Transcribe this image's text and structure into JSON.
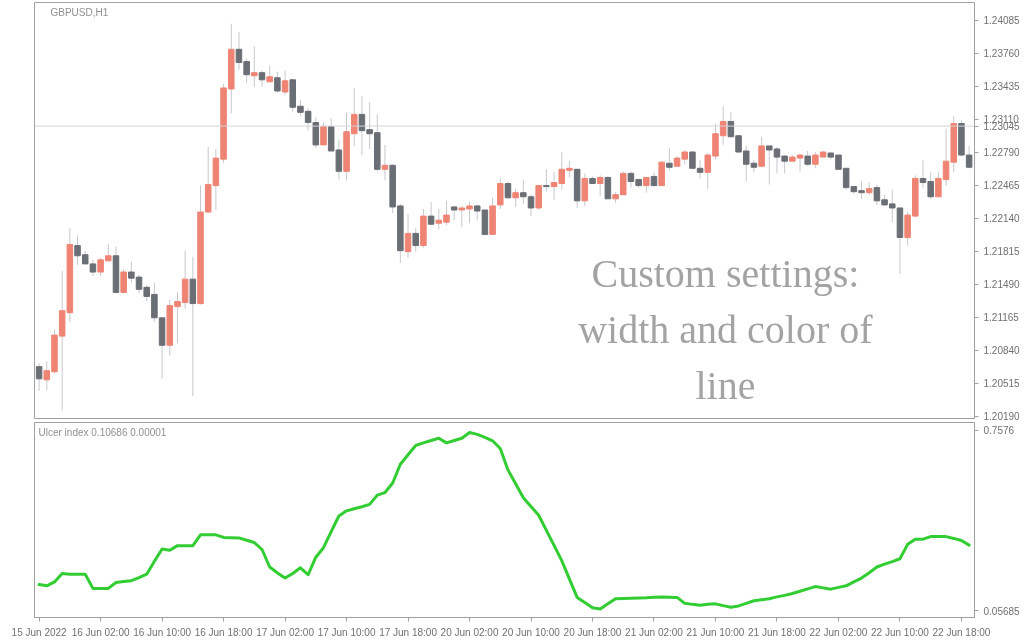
{
  "chart_data": [
    {
      "type": "candlestick",
      "title": "GBPUSD,H1",
      "annotations": [
        "Custom settings: width and color of line"
      ],
      "categories": [
        null,
        null,
        null,
        null,
        null,
        null,
        null,
        null,
        null,
        null,
        null,
        null,
        null,
        null,
        null,
        null,
        null,
        null,
        null,
        null,
        null,
        null,
        null,
        null,
        null,
        null,
        null,
        null,
        null,
        null,
        null,
        null,
        null,
        null,
        null,
        null,
        null,
        null,
        null,
        null,
        null,
        null,
        null,
        null,
        null,
        null,
        null,
        null,
        null,
        null,
        null,
        null,
        null,
        null,
        null,
        null,
        null,
        null,
        null,
        null,
        null,
        null,
        null,
        null,
        null,
        null,
        null,
        null,
        null,
        null,
        null,
        null,
        null,
        null,
        null,
        null,
        null,
        null,
        null,
        null,
        null,
        null,
        null,
        null,
        null,
        null,
        null,
        null,
        null,
        null,
        null,
        null,
        null,
        null,
        null,
        null,
        null,
        null,
        null,
        null,
        null,
        null,
        null,
        null,
        null,
        null,
        null,
        null,
        null,
        null,
        null,
        null,
        null,
        null,
        null,
        null,
        null,
        null,
        null,
        null,
        null,
        null
      ],
      "ohlc": [
        [
          1.2068,
          1.2071,
          1.2044,
          1.2056
        ],
        [
          1.2055,
          1.2073,
          1.2045,
          1.2064
        ],
        [
          1.2063,
          1.2104,
          1.2061,
          1.2099
        ],
        [
          1.2098,
          1.2162,
          1.2025,
          1.2123
        ],
        [
          1.2121,
          1.2204,
          1.2112,
          1.2188
        ],
        [
          1.2187,
          1.2197,
          1.2168,
          1.2177
        ],
        [
          1.2178,
          1.2182,
          1.2169,
          1.2169
        ],
        [
          1.2169,
          1.2173,
          1.2157,
          1.2161
        ],
        [
          1.2161,
          1.2175,
          1.2157,
          1.2173
        ],
        [
          1.2172,
          1.2189,
          1.2172,
          1.2177
        ],
        [
          1.2177,
          1.2186,
          1.214,
          1.2141
        ],
        [
          1.2141,
          1.2164,
          1.214,
          1.2161
        ],
        [
          1.2161,
          1.2171,
          1.2151,
          1.2155
        ],
        [
          1.2156,
          1.2158,
          1.214,
          1.2144
        ],
        [
          1.2146,
          1.2148,
          1.2132,
          1.2137
        ],
        [
          1.2139,
          1.215,
          1.2112,
          1.2116
        ],
        [
          1.2116,
          1.2116,
          1.2056,
          1.2089
        ],
        [
          1.2089,
          1.2134,
          1.2079,
          1.2128
        ],
        [
          1.2127,
          1.2141,
          1.2091,
          1.2132
        ],
        [
          1.2131,
          1.2182,
          1.2125,
          1.2154
        ],
        [
          1.2154,
          1.2176,
          1.2039,
          1.213
        ],
        [
          1.213,
          1.2246,
          1.2129,
          1.222
        ],
        [
          1.222,
          1.2284,
          1.2219,
          1.2247
        ],
        [
          1.2246,
          1.2282,
          1.2222,
          1.2273
        ],
        [
          1.2272,
          1.2346,
          1.2268,
          1.2342
        ],
        [
          1.2341,
          1.2405,
          1.2317,
          1.238
        ],
        [
          1.238,
          1.2397,
          1.236,
          1.2367
        ],
        [
          1.2368,
          1.2371,
          1.2347,
          1.2355
        ],
        [
          1.2354,
          1.2383,
          1.2343,
          1.2357
        ],
        [
          1.2357,
          1.2359,
          1.2343,
          1.235
        ],
        [
          1.2348,
          1.2364,
          1.2348,
          1.2353
        ],
        [
          1.2352,
          1.2358,
          1.2337,
          1.2339
        ],
        [
          1.2338,
          1.2359,
          1.2335,
          1.2349
        ],
        [
          1.235,
          1.2351,
          1.2318,
          1.2323
        ],
        [
          1.2324,
          1.233,
          1.2314,
          1.2318
        ],
        [
          1.2319,
          1.2322,
          1.23,
          1.2308
        ],
        [
          1.2308,
          1.2313,
          1.2283,
          1.2286
        ],
        [
          1.2286,
          1.2308,
          1.2286,
          1.2304
        ],
        [
          1.2304,
          1.2312,
          1.228,
          1.228
        ],
        [
          1.2281,
          1.2291,
          1.2252,
          1.226
        ],
        [
          1.226,
          1.2318,
          1.2251,
          1.2299
        ],
        [
          1.2297,
          1.2342,
          1.2285,
          1.2316
        ],
        [
          1.2316,
          1.2334,
          1.2276,
          1.23
        ],
        [
          1.2301,
          1.2328,
          1.2282,
          1.2297
        ],
        [
          1.2298,
          1.2316,
          1.226,
          1.2262
        ],
        [
          1.2262,
          1.2286,
          1.2251,
          1.2266
        ],
        [
          1.2266,
          1.2267,
          1.2219,
          1.2225
        ],
        [
          1.2226,
          1.2228,
          1.217,
          1.2182
        ],
        [
          1.2181,
          1.2218,
          1.2175,
          1.2199
        ],
        [
          1.2199,
          1.2204,
          1.2181,
          1.2187
        ],
        [
          1.2187,
          1.2223,
          1.2185,
          1.2216
        ],
        [
          1.2216,
          1.223,
          1.2207,
          1.2208
        ],
        [
          1.2209,
          1.2223,
          1.2203,
          1.2212
        ],
        [
          1.221,
          1.2231,
          1.2207,
          1.2217
        ],
        [
          1.2225,
          1.2226,
          1.2212,
          1.2222
        ],
        [
          1.2222,
          1.2226,
          1.2205,
          1.2224
        ],
        [
          1.2223,
          1.223,
          1.2209,
          1.2226
        ],
        [
          1.2226,
          1.2227,
          1.2212,
          1.2221
        ],
        [
          1.2222,
          1.2222,
          1.2197,
          1.2198
        ],
        [
          1.2198,
          1.2234,
          1.2198,
          1.2226
        ],
        [
          1.2227,
          1.2253,
          1.2223,
          1.2248
        ],
        [
          1.2248,
          1.225,
          1.2233,
          1.2234
        ],
        [
          1.2234,
          1.2243,
          1.2225,
          1.2239
        ],
        [
          1.2239,
          1.2252,
          1.2228,
          1.2235
        ],
        [
          1.2235,
          1.2237,
          1.2216,
          1.2224
        ],
        [
          1.2224,
          1.2247,
          1.2222,
          1.2246
        ],
        [
          1.2246,
          1.2262,
          1.224,
          1.2245
        ],
        [
          1.2245,
          1.2259,
          1.2232,
          1.2249
        ],
        [
          1.2248,
          1.2279,
          1.2242,
          1.2262
        ],
        [
          1.2261,
          1.227,
          1.2254,
          1.2263
        ],
        [
          1.2262,
          1.2262,
          1.2224,
          1.2231
        ],
        [
          1.2231,
          1.2258,
          1.2226,
          1.2253
        ],
        [
          1.2253,
          1.2255,
          1.2248,
          1.2248
        ],
        [
          1.2248,
          1.2256,
          1.2236,
          1.2254
        ],
        [
          1.2254,
          1.2255,
          1.2233,
          1.2233
        ],
        [
          1.2233,
          1.224,
          1.2229,
          1.2237
        ],
        [
          1.2237,
          1.226,
          1.2237,
          1.2258
        ],
        [
          1.2258,
          1.226,
          1.2244,
          1.225
        ],
        [
          1.2252,
          1.2252,
          1.2244,
          1.2246
        ],
        [
          1.2246,
          1.2254,
          1.2239,
          1.2254
        ],
        [
          1.2255,
          1.2259,
          1.2245,
          1.2246
        ],
        [
          1.2246,
          1.227,
          1.2246,
          1.2269
        ],
        [
          1.2268,
          1.2283,
          1.2261,
          1.2264
        ],
        [
          1.2265,
          1.2275,
          1.2265,
          1.2273
        ],
        [
          1.2272,
          1.2281,
          1.2267,
          1.2279
        ],
        [
          1.2279,
          1.228,
          1.2262,
          1.2263
        ],
        [
          1.2263,
          1.2271,
          1.2253,
          1.2259
        ],
        [
          1.2259,
          1.2278,
          1.2243,
          1.2276
        ],
        [
          1.2275,
          1.2307,
          1.2272,
          1.2297
        ],
        [
          1.2295,
          1.2324,
          1.2286,
          1.2309
        ],
        [
          1.2309,
          1.2318,
          1.2293,
          1.2294
        ],
        [
          1.2295,
          1.2295,
          1.2278,
          1.2279
        ],
        [
          1.228,
          1.2285,
          1.225,
          1.2267
        ],
        [
          1.2268,
          1.2271,
          1.2259,
          1.2264
        ],
        [
          1.2265,
          1.2294,
          1.2264,
          1.2285
        ],
        [
          1.2285,
          1.2285,
          1.2247,
          1.2281
        ],
        [
          1.2282,
          1.2284,
          1.2258,
          1.2274
        ],
        [
          1.2275,
          1.2276,
          1.2258,
          1.227
        ],
        [
          1.227,
          1.2276,
          1.227,
          1.2274
        ],
        [
          1.2273,
          1.2277,
          1.226,
          1.2276
        ],
        [
          1.2275,
          1.228,
          1.2265,
          1.2267
        ],
        [
          1.2267,
          1.2279,
          1.2263,
          1.2276
        ],
        [
          1.2274,
          1.228,
          1.2274,
          1.2279
        ],
        [
          1.2278,
          1.2279,
          1.2272,
          1.2274
        ],
        [
          1.2276,
          1.2276,
          1.2262,
          1.2262
        ],
        [
          1.2263,
          1.2263,
          1.2242,
          1.2244
        ],
        [
          1.2245,
          1.2245,
          1.2238,
          1.224
        ],
        [
          1.2241,
          1.225,
          1.2233,
          1.2239
        ],
        [
          1.2239,
          1.2249,
          1.2237,
          1.2243
        ],
        [
          1.2244,
          1.2247,
          1.2227,
          1.2231
        ],
        [
          1.2232,
          1.2237,
          1.2226,
          1.2227
        ],
        [
          1.2228,
          1.2242,
          1.221,
          1.2224
        ],
        [
          1.2224,
          1.2224,
          1.2159,
          1.2195
        ],
        [
          1.2195,
          1.222,
          1.2187,
          1.2217
        ],
        [
          1.2216,
          1.2256,
          1.2215,
          1.2253
        ],
        [
          1.2253,
          1.2271,
          1.2244,
          1.2249
        ],
        [
          1.225,
          1.2259,
          1.2233,
          1.2235
        ],
        [
          1.2235,
          1.2259,
          1.2235,
          1.2253
        ],
        [
          1.2252,
          1.2302,
          1.2246,
          1.227
        ],
        [
          1.2269,
          1.2314,
          1.2259,
          1.2307
        ],
        [
          1.2307,
          1.231,
          1.2275,
          1.2276
        ],
        [
          1.2276,
          1.2285,
          1.2263,
          1.2264
        ]
      ],
      "colors": [
        "#6a6e75",
        "#ef8474",
        "#ef8474",
        "#ef8474",
        "#ef8474",
        "#6a6e75",
        "#6a6e75",
        "#6a6e75",
        "#ef8474",
        "#ef8474",
        "#6a6e75",
        "#ef8474",
        "#6a6e75",
        "#6a6e75",
        "#6a6e75",
        "#6a6e75",
        "#6a6e75",
        "#ef8474",
        "#ef8474",
        "#ef8474",
        "#6a6e75",
        "#ef8474",
        "#ef8474",
        "#ef8474",
        "#ef8474",
        "#ef8474",
        "#6a6e75",
        "#6a6e75",
        "#ef8474",
        "#6a6e75",
        "#ef8474",
        "#6a6e75",
        "#ef8474",
        "#6a6e75",
        "#6a6e75",
        "#6a6e75",
        "#6a6e75",
        "#ef8474",
        "#6a6e75",
        "#6a6e75",
        "#ef8474",
        "#ef8474",
        "#6a6e75",
        "#6a6e75",
        "#6a6e75",
        "#ef8474",
        "#6a6e75",
        "#6a6e75",
        "#ef8474",
        "#6a6e75",
        "#ef8474",
        "#6a6e75",
        "#ef8474",
        "#ef8474",
        "#6a6e75",
        "#ef8474",
        "#ef8474",
        "#6a6e75",
        "#6a6e75",
        "#ef8474",
        "#ef8474",
        "#6a6e75",
        "#ef8474",
        "#6a6e75",
        "#6a6e75",
        "#ef8474",
        "#6a6e75",
        "#ef8474",
        "#ef8474",
        "#ef8474",
        "#6a6e75",
        "#ef8474",
        "#6a6e75",
        "#ef8474",
        "#6a6e75",
        "#ef8474",
        "#ef8474",
        "#6a6e75",
        "#6a6e75",
        "#ef8474",
        "#6a6e75",
        "#ef8474",
        "#6a6e75",
        "#ef8474",
        "#ef8474",
        "#6a6e75",
        "#6a6e75",
        "#ef8474",
        "#ef8474",
        "#ef8474",
        "#6a6e75",
        "#6a6e75",
        "#6a6e75",
        "#6a6e75",
        "#ef8474",
        "#6a6e75",
        "#6a6e75",
        "#6a6e75",
        "#ef8474",
        "#ef8474",
        "#6a6e75",
        "#ef8474",
        "#ef8474",
        "#6a6e75",
        "#6a6e75",
        "#6a6e75",
        "#6a6e75",
        "#6a6e75",
        "#ef8474",
        "#6a6e75",
        "#6a6e75",
        "#6a6e75",
        "#6a6e75",
        "#ef8474",
        "#ef8474",
        "#6a6e75",
        "#6a6e75",
        "#ef8474",
        "#ef8474",
        "#ef8474",
        "#6a6e75",
        "#6a6e75"
      ],
      "ylim": [
        1.2017,
        1.2426
      ],
      "yticks": [
        {
          "value": 1.24085,
          "label": "1.24085"
        },
        {
          "value": 1.2376,
          "label": "1.23760"
        },
        {
          "value": 1.23435,
          "label": "1.23435"
        },
        {
          "value": 1.2311,
          "label": "1.23110"
        },
        {
          "value": 1.2279,
          "label": "1.22790"
        },
        {
          "value": 1.22465,
          "label": "1.22465"
        },
        {
          "value": 1.2214,
          "label": "1.22140"
        },
        {
          "value": 1.21815,
          "label": "1.21815"
        },
        {
          "value": 1.2149,
          "label": "1.21490"
        },
        {
          "value": 1.21165,
          "label": "1.21165"
        },
        {
          "value": 1.2084,
          "label": "1.20840"
        },
        {
          "value": 1.20515,
          "label": "1.20515"
        },
        {
          "value": 1.2019,
          "label": "1.20190"
        }
      ],
      "ref_lines": [
        {
          "axis": "y",
          "value": 1.23045,
          "label": "1.23045",
          "color": "#d4d4dc"
        }
      ],
      "tick_labels": "y"
    },
    {
      "type": "line",
      "title": "Ulcer index 0.10686 0.00001",
      "categories": [
        "15 Jun 2022",
        null,
        null,
        null,
        null,
        null,
        null,
        null,
        "16 Jun 02:00",
        null,
        null,
        null,
        null,
        null,
        null,
        null,
        "16 Jun 10:00",
        null,
        null,
        null,
        null,
        null,
        null,
        null,
        "16 Jun 18:00",
        null,
        null,
        null,
        null,
        null,
        null,
        null,
        "17 Jun 02:00",
        null,
        null,
        null,
        null,
        null,
        null,
        null,
        "17 Jun 10:00",
        null,
        null,
        null,
        null,
        null,
        null,
        null,
        "17 Jun 18:00",
        null,
        null,
        null,
        null,
        null,
        null,
        null,
        "20 Jun 02:00",
        null,
        null,
        null,
        null,
        null,
        null,
        null,
        "20 Jun 10:00",
        null,
        null,
        null,
        null,
        null,
        null,
        null,
        "20 Jun 18:00",
        null,
        null,
        null,
        null,
        null,
        null,
        null,
        "21 Jun 02:00",
        null,
        null,
        null,
        null,
        null,
        null,
        null,
        "21 Jun 10:00",
        null,
        null,
        null,
        null,
        null,
        null,
        null,
        "21 Jun 18:00",
        null,
        null,
        null,
        null,
        null,
        null,
        null,
        "22 Jun 02:00",
        null,
        null,
        null,
        null,
        null,
        null,
        null,
        "22 Jun 10:00",
        null,
        null,
        null,
        null,
        null,
        null,
        null,
        "22 Jun 18:00",
        null
      ],
      "series": [
        {
          "color": "#32cd32",
          "values": [
            0.159,
            0.154,
            0.169,
            0.202,
            0.199,
            0.199,
            0.199,
            0.144,
            0.144,
            0.144,
            0.167,
            0.171,
            0.174,
            0.186,
            0.199,
            0.249,
            0.297,
            0.292,
            0.31,
            0.31,
            0.31,
            0.352,
            0.352,
            0.352,
            0.342,
            0.341,
            0.34,
            0.331,
            0.322,
            0.295,
            0.227,
            0.204,
            0.184,
            0.202,
            0.224,
            0.197,
            0.265,
            0.302,
            0.364,
            0.425,
            0.445,
            0.453,
            0.461,
            0.47,
            0.506,
            0.516,
            0.553,
            0.626,
            0.663,
            0.699,
            0.709,
            0.718,
            0.727,
            0.709,
            0.718,
            0.727,
            0.749,
            0.742,
            0.73,
            0.717,
            0.687,
            0.604,
            0.55,
            0.496,
            0.462,
            0.428,
            0.369,
            0.311,
            0.252,
            0.18,
            0.109,
            0.089,
            0.069,
            0.064,
            0.084,
            0.104,
            0.105,
            0.106,
            0.107,
            0.108,
            0.11,
            0.111,
            0.11,
            0.109,
            0.086,
            0.082,
            0.079,
            0.082,
            0.084,
            0.077,
            0.071,
            0.076,
            0.086,
            0.096,
            0.1,
            0.104,
            0.111,
            0.117,
            0.124,
            0.133,
            0.142,
            0.151,
            0.146,
            0.141,
            0.148,
            0.154,
            0.169,
            0.184,
            0.205,
            0.227,
            0.238,
            0.248,
            0.259,
            0.315,
            0.335,
            0.335,
            0.345,
            0.345,
            0.345,
            0.338,
            0.33,
            0.312
          ]
        }
      ],
      "ylim": [
        0.031,
        0.788
      ],
      "yticks": [
        0.7576,
        0.05685
      ]
    }
  ]
}
